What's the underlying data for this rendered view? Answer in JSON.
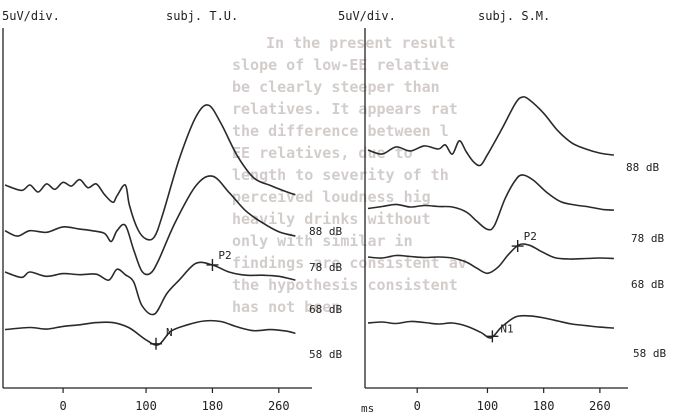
{
  "chart_data": [
    {
      "type": "line",
      "title": "subj. T.U.",
      "scale_label": "5uV/div.",
      "xlabel": "",
      "x_ticks": [
        0,
        100,
        180,
        260
      ],
      "xlim": [
        -70,
        300
      ],
      "series": [
        {
          "name": "88 dB",
          "points": [
            [
              -70,
              0.0
            ],
            [
              -50,
              -1.0
            ],
            [
              -40,
              0.0
            ],
            [
              -30,
              -1.3
            ],
            [
              -20,
              0.2
            ],
            [
              -10,
              -0.8
            ],
            [
              0,
              0.5
            ],
            [
              10,
              -0.2
            ],
            [
              20,
              1.0
            ],
            [
              30,
              -0.5
            ],
            [
              40,
              0.2
            ],
            [
              50,
              -1.8
            ],
            [
              60,
              -3.2
            ],
            [
              65,
              -2.0
            ],
            [
              75,
              0.0
            ],
            [
              80,
              -3.8
            ],
            [
              90,
              -8.2
            ],
            [
              100,
              -10.0
            ],
            [
              110,
              -9.6
            ],
            [
              120,
              -5.5
            ],
            [
              140,
              4.8
            ],
            [
              160,
              12.6
            ],
            [
              175,
              14.8
            ],
            [
              190,
              11.5
            ],
            [
              210,
              5.4
            ],
            [
              230,
              1.3
            ],
            [
              250,
              -0.1
            ],
            [
              270,
              -1.3
            ],
            [
              280,
              -1.8
            ]
          ]
        },
        {
          "name": "78 dB",
          "points": [
            [
              -70,
              -0.5
            ],
            [
              -55,
              -1.5
            ],
            [
              -40,
              -0.5
            ],
            [
              -20,
              -0.8
            ],
            [
              0,
              0.2
            ],
            [
              20,
              -0.2
            ],
            [
              35,
              -0.5
            ],
            [
              50,
              -1.0
            ],
            [
              58,
              -2.5
            ],
            [
              65,
              -0.5
            ],
            [
              75,
              0.5
            ],
            [
              85,
              -4.0
            ],
            [
              95,
              -8.0
            ],
            [
              105,
              -8.4
            ],
            [
              115,
              -6.0
            ],
            [
              135,
              1.0
            ],
            [
              160,
              7.8
            ],
            [
              180,
              9.6
            ],
            [
              200,
              6.6
            ],
            [
              220,
              3.2
            ],
            [
              240,
              1.0
            ],
            [
              260,
              -0.7
            ],
            [
              280,
              -1.5
            ]
          ]
        },
        {
          "name": "68 dB",
          "points": [
            [
              -70,
              0.0
            ],
            [
              -50,
              -1.0
            ],
            [
              -40,
              0.0
            ],
            [
              -20,
              -0.8
            ],
            [
              0,
              -0.3
            ],
            [
              20,
              -0.5
            ],
            [
              40,
              -0.4
            ],
            [
              55,
              -1.5
            ],
            [
              65,
              0.5
            ],
            [
              75,
              -0.5
            ],
            [
              85,
              -1.8
            ],
            [
              95,
              -6.2
            ],
            [
              110,
              -7.8
            ],
            [
              125,
              -4.0
            ],
            [
              140,
              -1.5
            ],
            [
              160,
              1.6
            ],
            [
              180,
              1.3
            ],
            [
              200,
              0.0
            ],
            [
              220,
              -0.6
            ],
            [
              240,
              -0.6
            ],
            [
              260,
              -0.8
            ],
            [
              280,
              -1.5
            ]
          ]
        },
        {
          "name": "58 dB",
          "points": [
            [
              -70,
              -0.3
            ],
            [
              -40,
              0.1
            ],
            [
              -20,
              -0.2
            ],
            [
              0,
              0.3
            ],
            [
              20,
              0.6
            ],
            [
              40,
              1.0
            ],
            [
              60,
              1.0
            ],
            [
              80,
              0.0
            ],
            [
              100,
              -2.2
            ],
            [
              115,
              -3.1
            ],
            [
              130,
              -0.6
            ],
            [
              150,
              0.6
            ],
            [
              170,
              1.3
            ],
            [
              190,
              1.2
            ],
            [
              210,
              0.2
            ],
            [
              230,
              -0.5
            ],
            [
              250,
              -0.3
            ],
            [
              270,
              -0.6
            ],
            [
              280,
              -1.0
            ]
          ]
        }
      ],
      "annotations": [
        "P2",
        "N"
      ]
    },
    {
      "type": "line",
      "title": "subj. S.M.",
      "scale_label": "5uV/div.",
      "xlabel": "ms",
      "x_ticks": [
        0,
        100,
        180,
        260
      ],
      "xlim": [
        -70,
        300
      ],
      "series": [
        {
          "name": "88 dB",
          "points": [
            [
              -70,
              0.0
            ],
            [
              -50,
              -0.8
            ],
            [
              -30,
              0.6
            ],
            [
              -10,
              -0.2
            ],
            [
              10,
              0.8
            ],
            [
              30,
              0.2
            ],
            [
              40,
              1.0
            ],
            [
              50,
              -0.8
            ],
            [
              60,
              1.8
            ],
            [
              70,
              -0.4
            ],
            [
              80,
              -2.3
            ],
            [
              90,
              -3.0
            ],
            [
              100,
              -0.9
            ],
            [
              120,
              4.0
            ],
            [
              140,
              9.2
            ],
            [
              150,
              10.4
            ],
            [
              160,
              9.8
            ],
            [
              180,
              7.2
            ],
            [
              200,
              3.8
            ],
            [
              220,
              1.4
            ],
            [
              240,
              0.2
            ],
            [
              260,
              -0.6
            ],
            [
              280,
              -1.0
            ]
          ]
        },
        {
          "name": "78 dB",
          "points": [
            [
              -70,
              -0.3
            ],
            [
              -50,
              0.1
            ],
            [
              -30,
              0.5
            ],
            [
              -10,
              0.0
            ],
            [
              10,
              0.3
            ],
            [
              30,
              0.1
            ],
            [
              50,
              0.0
            ],
            [
              70,
              -1.0
            ],
            [
              85,
              -2.8
            ],
            [
              100,
              -4.4
            ],
            [
              110,
              -3.6
            ],
            [
              125,
              1.6
            ],
            [
              140,
              5.3
            ],
            [
              150,
              6.3
            ],
            [
              165,
              5.3
            ],
            [
              185,
              2.8
            ],
            [
              205,
              1.0
            ],
            [
              225,
              0.4
            ],
            [
              245,
              0.0
            ],
            [
              265,
              -0.5
            ],
            [
              280,
              -0.6
            ]
          ]
        },
        {
          "name": "68 dB",
          "points": [
            [
              -70,
              0.0
            ],
            [
              -50,
              -0.2
            ],
            [
              -30,
              0.3
            ],
            [
              -10,
              0.1
            ],
            [
              10,
              -0.1
            ],
            [
              30,
              0.0
            ],
            [
              50,
              -0.2
            ],
            [
              70,
              -1.0
            ],
            [
              85,
              -2.2
            ],
            [
              100,
              -3.2
            ],
            [
              115,
              -2.0
            ],
            [
              130,
              0.5
            ],
            [
              145,
              2.4
            ],
            [
              160,
              2.3
            ],
            [
              175,
              1.2
            ],
            [
              195,
              -0.1
            ],
            [
              215,
              -0.4
            ],
            [
              240,
              -0.3
            ],
            [
              260,
              -0.2
            ],
            [
              280,
              -0.3
            ]
          ]
        },
        {
          "name": "58 dB",
          "points": [
            [
              -70,
              0.0
            ],
            [
              -50,
              0.2
            ],
            [
              -30,
              -0.1
            ],
            [
              -10,
              0.3
            ],
            [
              10,
              0.1
            ],
            [
              30,
              -0.2
            ],
            [
              50,
              0.0
            ],
            [
              70,
              -0.6
            ],
            [
              90,
              -1.8
            ],
            [
              105,
              -2.9
            ],
            [
              120,
              -0.8
            ],
            [
              140,
              1.2
            ],
            [
              160,
              1.4
            ],
            [
              180,
              1.0
            ],
            [
              200,
              0.4
            ],
            [
              220,
              -0.2
            ],
            [
              240,
              -0.5
            ],
            [
              260,
              -0.8
            ],
            [
              280,
              -1.0
            ]
          ]
        }
      ],
      "annotations": [
        "P2",
        "N1"
      ]
    }
  ]
}
